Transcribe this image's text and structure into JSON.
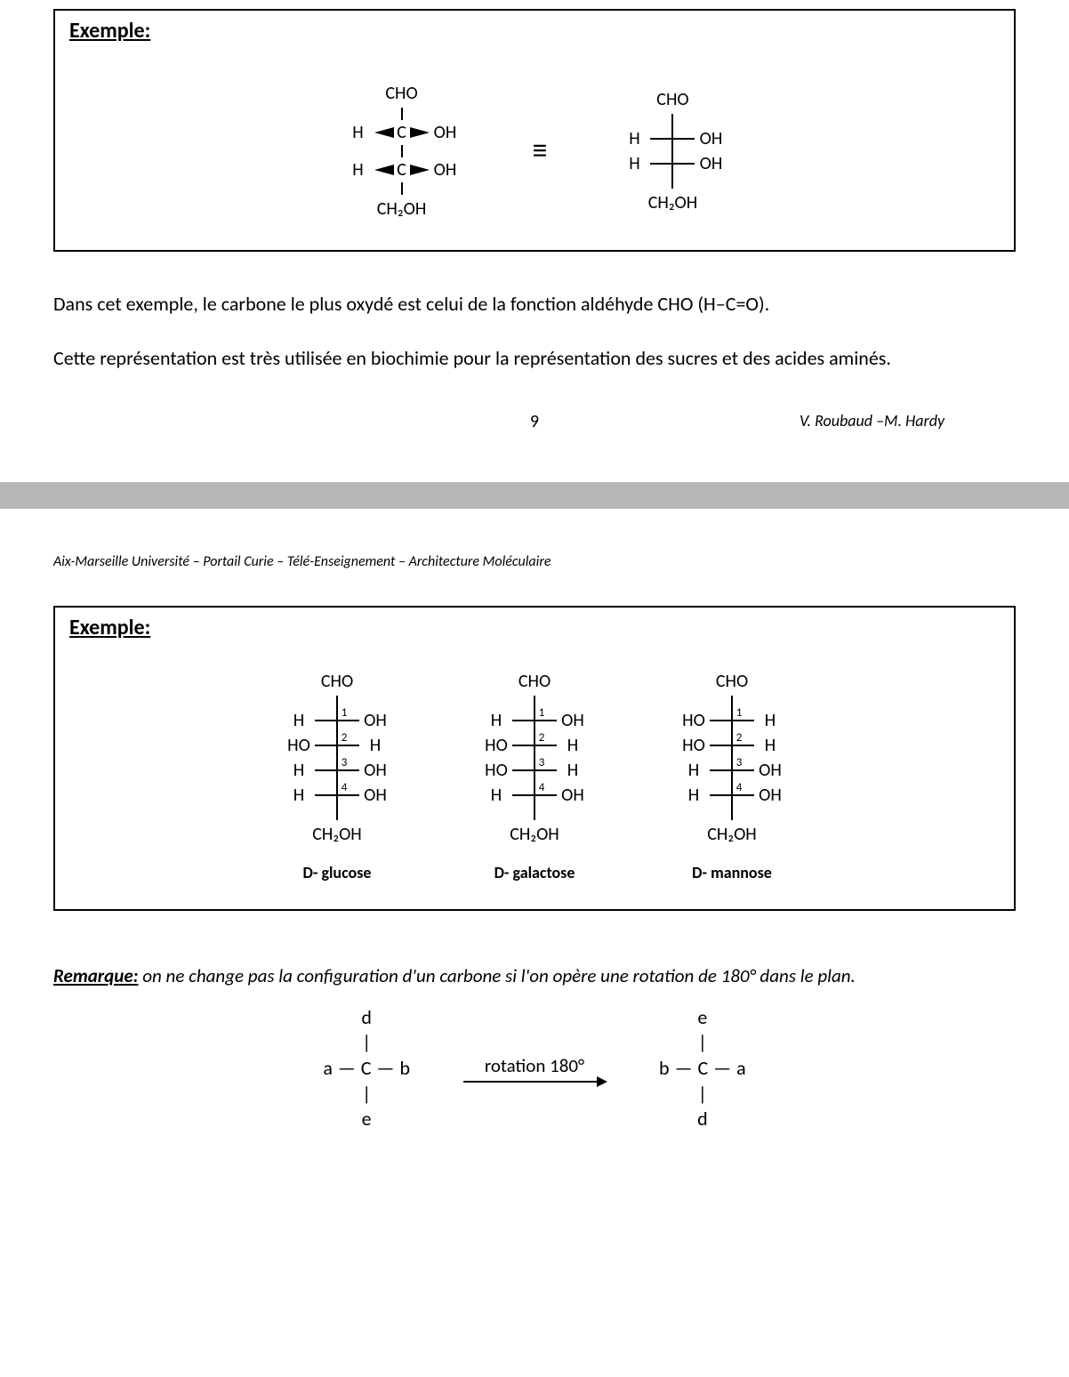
{
  "exempleLabel": "Exemple:",
  "fig1": {
    "topGroup": "CHO",
    "bottomGroup": "CH₂OH",
    "rows": [
      {
        "left": "H",
        "right": "OH"
      },
      {
        "left": "H",
        "right": "OH"
      }
    ],
    "equivSymbol": "≡"
  },
  "para1": "Dans cet exemple, le carbone le plus oxydé est celui de la fonction aldéhyde CHO (H–C=O).",
  "para2": "Cette représentation est très utilisée en biochimie pour la représentation des sucres et des acides  aminés.",
  "pageNumber": "9",
  "authors": "V. Roubaud –M. Hardy",
  "courseHeader": "Aix-Marseille Université – Portail Curie – Télé-Enseignement – Architecture Moléculaire",
  "sugars": [
    {
      "name": "D- glucose",
      "top": "CHO",
      "bottom": "CH₂OH",
      "rows": [
        {
          "n": "1",
          "left": "H",
          "right": "OH"
        },
        {
          "n": "2",
          "left": "HO",
          "right": "H"
        },
        {
          "n": "3",
          "left": "H",
          "right": "OH"
        },
        {
          "n": "4",
          "left": "H",
          "right": "OH"
        }
      ]
    },
    {
      "name": "D- galactose",
      "top": "CHO",
      "bottom": "CH₂OH",
      "rows": [
        {
          "n": "1",
          "left": "H",
          "right": "OH"
        },
        {
          "n": "2",
          "left": "HO",
          "right": "H"
        },
        {
          "n": "3",
          "left": "HO",
          "right": "H"
        },
        {
          "n": "4",
          "left": "H",
          "right": "OH"
        }
      ]
    },
    {
      "name": "D- mannose",
      "top": "CHO",
      "bottom": "CH₂OH",
      "rows": [
        {
          "n": "1",
          "left": "HO",
          "right": "H"
        },
        {
          "n": "2",
          "left": "HO",
          "right": "H"
        },
        {
          "n": "3",
          "left": "H",
          "right": "OH"
        },
        {
          "n": "4",
          "left": "H",
          "right": "OH"
        }
      ]
    }
  ],
  "remarkLabel": "Remarque:",
  "remarkText": " on ne change pas la configuration d'un carbone si l'on opère une rotation de 180° dans  le plan.",
  "rotation": {
    "left": {
      "top": "d",
      "left": "a",
      "right": "b",
      "bottom": "e"
    },
    "arrowLabel": "rotation 180°",
    "right": {
      "top": "e",
      "left": "b",
      "right": "a",
      "bottom": "d"
    }
  }
}
